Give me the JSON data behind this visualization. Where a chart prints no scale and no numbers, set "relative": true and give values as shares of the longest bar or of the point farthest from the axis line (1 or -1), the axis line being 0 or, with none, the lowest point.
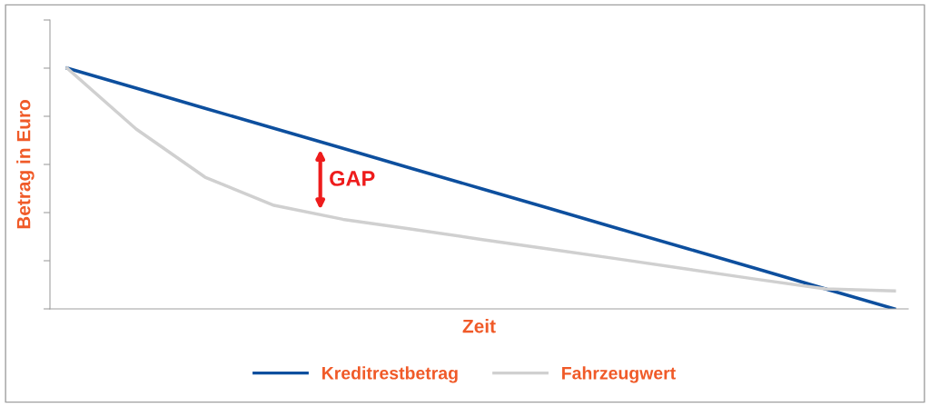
{
  "chart_data": {
    "type": "line",
    "relative": true,
    "xlabel": "Zeit",
    "ylabel": "Betrag in Euro",
    "categories": [
      null,
      null,
      null,
      null,
      null,
      null,
      null,
      null,
      null,
      null,
      null,
      null,
      null
    ],
    "series": [
      {
        "name": "Kreditrestbetrag",
        "color": "#0d4f9e",
        "values": [
          1,
          0.917,
          0.833,
          0.75,
          0.667,
          0.583,
          0.5,
          0.417,
          0.333,
          0.25,
          0.167,
          0.083,
          0
        ]
      },
      {
        "name": "Fahrzeugwert",
        "color": "#d0d0d0",
        "values": [
          1,
          0.747,
          0.547,
          0.43,
          0.372,
          0.331,
          0.289,
          0.248,
          0.207,
          0.165,
          0.123,
          0.083,
          0.075
        ]
      }
    ],
    "annotations": [
      "GAP"
    ],
    "legend": "bottom",
    "grid": false,
    "marker": "none",
    "line_style": "solid"
  }
}
